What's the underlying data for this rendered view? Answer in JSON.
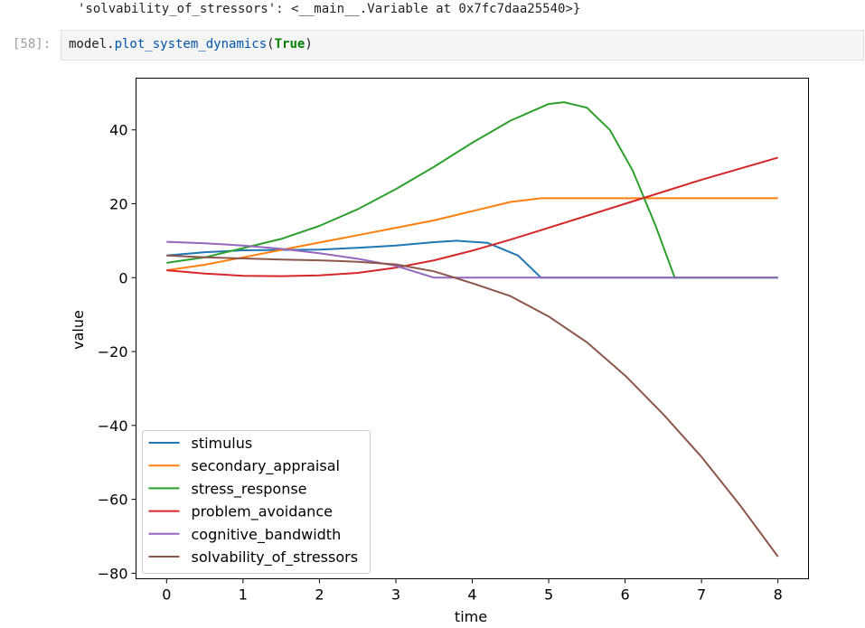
{
  "prev_output": {
    "text": "'solvability_of_stressors': <__main__.Variable at 0x7fc7daa25540>}"
  },
  "cell": {
    "prompt": "[58]:",
    "code_obj": "model.",
    "code_fn": "plot_system_dynamics",
    "code_open": "(",
    "code_arg": "True",
    "code_close": ")"
  },
  "colors": {
    "stimulus": "#1f77b4",
    "secondary_appraisal": "#ff7f0e",
    "stress_response": "#2ca02c",
    "problem_avoidance": "#d62728",
    "cognitive_bandwidth": "#9467bd",
    "solvability_of_stressors": "#8c564b"
  },
  "chart_data": {
    "type": "line",
    "xlabel": "time",
    "ylabel": "value",
    "xlim": [
      -0.4,
      8.4
    ],
    "ylim": [
      -81.5,
      54
    ],
    "xticks": [
      0,
      1,
      2,
      3,
      4,
      5,
      6,
      7,
      8
    ],
    "yticks": [
      -80,
      -60,
      -40,
      -20,
      0,
      20,
      40
    ],
    "ytick_labels": [
      "−80",
      "−60",
      "−40",
      "−20",
      "0",
      "20",
      "40"
    ],
    "legend_placement": "lower-left",
    "grid": false,
    "series": [
      {
        "name": "stimulus",
        "x": [
          0,
          0.5,
          1,
          1.5,
          2,
          2.5,
          3,
          3.5,
          3.8,
          4.2,
          4.6,
          4.9,
          5,
          6,
          7,
          8
        ],
        "y": [
          6,
          6.9,
          7.4,
          7.5,
          7.6,
          8.1,
          8.7,
          9.6,
          10,
          9.4,
          6,
          0,
          0,
          0,
          0,
          0
        ]
      },
      {
        "name": "secondary_appraisal",
        "x": [
          0,
          0.5,
          1,
          1.5,
          2,
          2.5,
          3,
          3.5,
          4,
          4.5,
          4.9,
          5,
          6,
          7,
          8
        ],
        "y": [
          2,
          3.5,
          5.5,
          7.5,
          9.5,
          11.5,
          13.5,
          15.5,
          18,
          20.5,
          21.5,
          21.5,
          21.5,
          21.5,
          21.5
        ]
      },
      {
        "name": "stress_response",
        "x": [
          0,
          0.5,
          1,
          1.5,
          2,
          2.5,
          3,
          3.5,
          4,
          4.5,
          5,
          5.2,
          5.5,
          5.8,
          6.1,
          6.4,
          6.65,
          7,
          8
        ],
        "y": [
          4,
          5.5,
          8,
          10.5,
          14,
          18.5,
          24,
          30,
          36.5,
          42.5,
          47,
          47.5,
          46,
          40,
          29,
          14,
          0,
          0,
          0
        ]
      },
      {
        "name": "problem_avoidance",
        "x": [
          0,
          0.5,
          1,
          1.5,
          2,
          2.5,
          3,
          3.5,
          4,
          4.5,
          5,
          6,
          7,
          8
        ],
        "y": [
          2,
          1.1,
          0.5,
          0.4,
          0.6,
          1.3,
          2.7,
          4.7,
          7.3,
          10.3,
          13.5,
          20,
          26.5,
          32.5
        ]
      },
      {
        "name": "cognitive_bandwidth",
        "x": [
          0,
          0.5,
          1,
          1.5,
          2,
          2.5,
          3,
          3.5,
          4,
          5,
          6,
          7,
          8
        ],
        "y": [
          9.7,
          9.3,
          8.7,
          7.8,
          6.6,
          5.1,
          3.2,
          0,
          0,
          0,
          0,
          0,
          0
        ]
      },
      {
        "name": "solvability_of_stressors",
        "x": [
          0,
          0.5,
          1,
          1.5,
          2,
          2.5,
          3,
          3.5,
          4,
          4.5,
          5,
          5.5,
          6,
          6.5,
          7,
          7.5,
          8
        ],
        "y": [
          6,
          5.5,
          5.2,
          4.9,
          4.7,
          4.3,
          3.6,
          1.7,
          -1.5,
          -5,
          -10.5,
          -17.5,
          -26.5,
          -37,
          -48.5,
          -61.5,
          -75.5
        ]
      }
    ]
  }
}
